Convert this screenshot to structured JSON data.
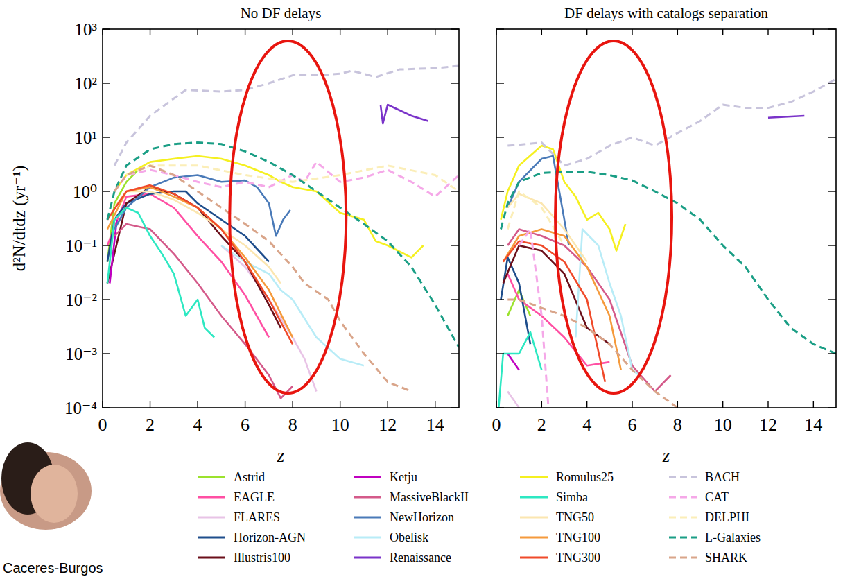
{
  "chart_data": [
    {
      "type": "line",
      "title": "No DF delays",
      "x_label": "z",
      "y_label": "d²N/dtdz (yr⁻¹)",
      "log": "y",
      "grid": false,
      "legend": "bottom",
      "xlim": [
        0,
        15
      ],
      "ylim": [
        0.0001,
        1000
      ],
      "xticks": [
        0,
        2,
        4,
        6,
        8,
        10,
        12,
        14
      ],
      "yticks": [
        {
          "value": 0.0001,
          "label": "10⁻⁴"
        },
        {
          "value": 0.001,
          "label": "10⁻³"
        },
        {
          "value": 0.01,
          "label": "10⁻²"
        },
        {
          "value": 0.1,
          "label": "10⁻¹"
        },
        {
          "value": 1,
          "label": "10⁰"
        },
        {
          "value": 10,
          "label": "10¹"
        },
        {
          "value": 100,
          "label": "10²"
        },
        {
          "value": 1000,
          "label": "10³"
        }
      ],
      "credit": "Caceres-Burgos",
      "series": [
        {
          "name": "Astrid",
          "color": "#9be22d",
          "line_style": "solid",
          "x": [
            0.2,
            0.5,
            1,
            1.5
          ],
          "values": [
            0.05,
            0.6,
            1.5,
            2.5
          ]
        },
        {
          "name": "EAGLE",
          "color": "#ff4fa3",
          "line_style": "solid",
          "x": [
            0.2,
            1,
            2,
            3,
            4,
            5,
            6,
            7
          ],
          "values": [
            0.1,
            0.8,
            0.9,
            0.5,
            0.15,
            0.05,
            0.012,
            0.002
          ]
        },
        {
          "name": "FLARES",
          "color": "#e8c3e6",
          "line_style": "solid",
          "x": [
            5,
            6,
            7,
            8,
            8.5,
            9
          ],
          "values": [
            0.1,
            0.04,
            0.01,
            0.002,
            0.0008,
            0.0002
          ]
        },
        {
          "name": "Horizon-AGN",
          "color": "#1f4e8c",
          "line_style": "solid",
          "x": [
            0.2,
            0.5,
            1,
            2,
            3,
            3.5,
            4,
            5,
            6,
            7
          ],
          "values": [
            0.05,
            0.3,
            0.6,
            0.9,
            1.0,
            1.0,
            0.6,
            0.3,
            0.15,
            0.05
          ]
        },
        {
          "name": "Illustris100",
          "color": "#6b0f1a",
          "line_style": "solid",
          "x": [
            0.2,
            1,
            2,
            3,
            4,
            5,
            6,
            7,
            7.5
          ],
          "values": [
            0.02,
            0.6,
            1.2,
            0.9,
            0.5,
            0.15,
            0.05,
            0.008,
            0.003
          ]
        },
        {
          "name": "Ketju",
          "color": "#c000c0",
          "line_style": "solid",
          "x": [
            0.3,
            0.6
          ],
          "values": [
            0.02,
            0.3
          ]
        },
        {
          "name": "MassiveBlackII",
          "color": "#d45a8a",
          "line_style": "solid",
          "x": [
            0.5,
            1,
            2,
            3,
            4,
            5,
            6,
            7,
            7.5,
            8
          ],
          "values": [
            0.15,
            0.25,
            0.2,
            0.07,
            0.02,
            0.005,
            0.0015,
            0.0004,
            0.00015,
            0.00025
          ]
        },
        {
          "name": "NewHorizon",
          "color": "#4a7ab8",
          "line_style": "solid",
          "x": [
            0.5,
            1,
            2,
            3,
            4,
            5,
            6,
            6.5,
            7,
            7.3,
            7.6,
            7.9
          ],
          "values": [
            0.2,
            0.5,
            1.2,
            1.8,
            2,
            1.5,
            1.6,
            1.2,
            0.6,
            0.15,
            0.3,
            0.45
          ]
        },
        {
          "name": "Obelisk",
          "color": "#b8ecf7",
          "line_style": "solid",
          "x": [
            5,
            6,
            7,
            7.5,
            8,
            9,
            10,
            11
          ],
          "values": [
            0.1,
            0.05,
            0.03,
            0.015,
            0.01,
            0.002,
            0.0008,
            0.0006
          ]
        },
        {
          "name": "Renaissance",
          "color": "#7a33c9",
          "line_style": "solid",
          "x": [
            11.7,
            11.8,
            12,
            13,
            13.7
          ],
          "values": [
            40,
            18,
            40,
            25,
            20
          ]
        },
        {
          "name": "Romulus25",
          "color": "#f5f020",
          "line_style": "solid",
          "x": [
            0.5,
            1,
            2,
            3,
            4,
            5,
            6,
            7,
            7.5,
            8,
            9,
            10,
            11,
            11.5,
            12,
            13,
            13.5
          ],
          "values": [
            1,
            2,
            3.5,
            4,
            4.5,
            4,
            3,
            2,
            1.5,
            1.2,
            1.0,
            0.4,
            0.3,
            0.12,
            0.1,
            0.06,
            0.1
          ]
        },
        {
          "name": "Simba",
          "color": "#2de8c2",
          "line_style": "solid",
          "x": [
            0.2,
            0.5,
            1,
            1.5,
            2,
            2.5,
            3,
            3.5,
            4,
            4.3,
            4.7
          ],
          "values": [
            0.02,
            0.3,
            0.5,
            0.4,
            0.15,
            0.07,
            0.03,
            0.005,
            0.01,
            0.003,
            0.002
          ]
        },
        {
          "name": "TNG50",
          "color": "#fbe6b0",
          "line_style": "solid",
          "x": [
            0.5,
            1,
            2,
            3,
            4,
            5,
            6,
            7,
            7.5
          ],
          "values": [
            0.5,
            1,
            1.0,
            0.7,
            0.4,
            0.2,
            0.1,
            0.04,
            0.02
          ]
        },
        {
          "name": "TNG100",
          "color": "#f59a3c",
          "line_style": "solid",
          "x": [
            0.2,
            1,
            2,
            3,
            4,
            5,
            6,
            7,
            8
          ],
          "values": [
            0.2,
            1,
            1.2,
            0.8,
            0.5,
            0.2,
            0.06,
            0.015,
            0.002
          ]
        },
        {
          "name": "TNG300",
          "color": "#f04a2a",
          "line_style": "solid",
          "x": [
            0.2,
            1,
            2,
            3,
            4,
            5,
            6,
            7,
            8
          ],
          "values": [
            0.3,
            1,
            1.3,
            0.9,
            0.5,
            0.2,
            0.05,
            0.01,
            0.0015
          ]
        },
        {
          "name": "BACH",
          "color": "#c8c4dc",
          "line_style": "dashed",
          "x": [
            0.5,
            1,
            2,
            3.5,
            5,
            6,
            7,
            8,
            9,
            10,
            10.5,
            11.5,
            12.5,
            14,
            15
          ],
          "values": [
            3,
            8,
            25,
            75,
            70,
            75,
            100,
            140,
            140,
            150,
            170,
            130,
            180,
            190,
            210
          ]
        },
        {
          "name": "CAT",
          "color": "#f5a8e8",
          "line_style": "dashed",
          "x": [
            0.5,
            1,
            2,
            3,
            4,
            5,
            6,
            7,
            8,
            8.5,
            9,
            10,
            11,
            12,
            13,
            14,
            15
          ],
          "values": [
            1,
            2,
            2.5,
            2,
            1.5,
            1.2,
            1.5,
            1.2,
            2,
            1.5,
            3.5,
            1.5,
            1.8,
            2.5,
            1.5,
            0.8,
            2
          ]
        },
        {
          "name": "DELPHI",
          "color": "#fbeeb8",
          "line_style": "dashed",
          "x": [
            1,
            2,
            4,
            6,
            8,
            10,
            12,
            14,
            15
          ],
          "values": [
            2,
            3,
            3,
            2,
            1.5,
            2,
            3,
            2,
            1
          ]
        },
        {
          "name": "L-Galaxies",
          "color": "#1a9e85",
          "line_style": "dashed",
          "x": [
            0.2,
            0.5,
            1,
            2,
            3,
            4,
            5,
            6,
            7,
            8,
            9,
            10,
            11,
            12,
            13,
            14,
            15
          ],
          "values": [
            0.3,
            1,
            3,
            6,
            7.5,
            8,
            7.5,
            5.5,
            3.5,
            2,
            1,
            0.5,
            0.25,
            0.12,
            0.04,
            0.008,
            0.0013
          ]
        },
        {
          "name": "SHARK",
          "color": "#d9a58a",
          "line_style": "dashed",
          "x": [
            0.5,
            1,
            2,
            3,
            4,
            5,
            6,
            7,
            8,
            8.5,
            9.5,
            10,
            11,
            12,
            13
          ],
          "values": [
            1,
            2,
            3,
            2,
            1,
            0.5,
            0.25,
            0.12,
            0.04,
            0.02,
            0.01,
            0.004,
            0.001,
            0.0003,
            0.0002
          ]
        }
      ]
    },
    {
      "type": "line",
      "title": "DF delays with catalogs separation",
      "x_label": "z",
      "log": "y",
      "grid": false,
      "tick_labels": "x",
      "xlim": [
        0,
        15
      ],
      "ylim": [
        0.0001,
        1000
      ],
      "xticks": [
        0,
        2,
        4,
        6,
        8,
        10,
        12,
        14
      ],
      "yticks": [
        0.0001,
        0.001,
        0.01,
        0.1,
        1,
        10,
        100,
        1000
      ],
      "series": [
        {
          "color": "#9be22d",
          "line_style": "solid",
          "x": [
            0.5,
            1,
            1.5
          ],
          "values": [
            0.005,
            0.015,
            0.005
          ]
        },
        {
          "color": "#ff4fa3",
          "line_style": "solid",
          "x": [
            0.5,
            1,
            2,
            3,
            4,
            5
          ],
          "values": [
            0.03,
            0.01,
            0.005,
            0.002,
            0.0006,
            0.0007
          ]
        },
        {
          "color": "#e8c3e6",
          "line_style": "solid",
          "x": [
            0.5,
            1
          ],
          "values": [
            0.0002,
            0.0001
          ]
        },
        {
          "color": "#1f4e8c",
          "line_style": "solid",
          "x": [
            0.2,
            0.5,
            1,
            1.5
          ],
          "values": [
            0.01,
            0.06,
            0.02,
            0.0015
          ]
        },
        {
          "color": "#6b0f1a",
          "line_style": "solid",
          "x": [
            0.3,
            1,
            2,
            3,
            4,
            5
          ],
          "values": [
            0.02,
            0.1,
            0.08,
            0.03,
            0.003,
            0.0015
          ]
        },
        {
          "color": "#c000c0",
          "line_style": "solid",
          "x": [
            0.5,
            1
          ],
          "values": [
            0.001,
            0.0005
          ]
        },
        {
          "color": "#d45a8a",
          "line_style": "solid",
          "x": [
            0.5,
            1,
            2,
            3,
            4,
            5,
            6,
            7,
            7.7
          ],
          "values": [
            0.1,
            0.2,
            0.15,
            0.1,
            0.04,
            0.01,
            0.0006,
            0.0002,
            0.0004
          ]
        },
        {
          "color": "#4a7ab8",
          "line_style": "solid",
          "x": [
            0.5,
            1,
            2,
            2.5,
            3,
            3.2
          ],
          "values": [
            0.5,
            1.5,
            4,
            4.5,
            0.3,
            0.1
          ]
        },
        {
          "color": "#b8ecf7",
          "line_style": "solid",
          "x": [
            3.5,
            3.8,
            4.5,
            5,
            5.5,
            6,
            6.3
          ],
          "values": [
            0.002,
            0.2,
            0.1,
            0.02,
            0.005,
            0.0005,
            0.0004
          ]
        },
        {
          "color": "#7a33c9",
          "line_style": "solid",
          "x": [
            12,
            13.6
          ],
          "values": [
            23,
            25
          ]
        },
        {
          "color": "#f5f020",
          "line_style": "solid",
          "x": [
            0.2,
            0.5,
            1,
            2,
            2.5,
            3,
            3.5,
            4,
            4.5,
            5,
            5.3,
            5.7
          ],
          "values": [
            0.3,
            1,
            3,
            7,
            6,
            1.5,
            0.8,
            0.3,
            0.4,
            0.2,
            0.08,
            0.25
          ]
        },
        {
          "color": "#2de8c2",
          "line_style": "solid",
          "x": [
            0.1,
            0.3,
            1,
            1.5,
            2
          ],
          "values": [
            0.0001,
            0.001,
            0.001,
            0.0025,
            0.0005
          ]
        },
        {
          "color": "#fbe6b0",
          "line_style": "solid",
          "x": [
            0.5,
            1,
            2,
            3,
            4
          ],
          "values": [
            0.5,
            0.9,
            0.6,
            0.2,
            0.05
          ]
        },
        {
          "color": "#f59a3c",
          "line_style": "solid",
          "x": [
            0.3,
            1,
            2,
            3,
            4,
            5,
            5.5
          ],
          "values": [
            0.05,
            0.15,
            0.2,
            0.15,
            0.04,
            0.005,
            0.0005
          ]
        },
        {
          "color": "#f04a2a",
          "line_style": "solid",
          "x": [
            0.3,
            1,
            2,
            3,
            4,
            4.8
          ],
          "values": [
            0.05,
            0.12,
            0.1,
            0.05,
            0.01,
            0.0003
          ]
        },
        {
          "color": "#c8c4dc",
          "line_style": "dashed",
          "x": [
            0.5,
            2,
            3,
            4,
            5,
            6,
            7,
            8,
            9,
            10,
            11,
            12,
            13,
            14,
            15
          ],
          "values": [
            7,
            8,
            3,
            4,
            7,
            10,
            7,
            12,
            20,
            40,
            35,
            35,
            45,
            70,
            120
          ]
        },
        {
          "color": "#f5a8e8",
          "line_style": "dashed",
          "x": [
            1,
            1.5,
            2,
            2.3
          ],
          "values": [
            0.1,
            0.2,
            0.005,
            0.0001
          ]
        },
        {
          "color": "#fbeeb8",
          "line_style": "dashed",
          "x": [
            0.5,
            1,
            2,
            3
          ],
          "values": [
            0.2,
            1,
            0.5,
            0.1
          ]
        },
        {
          "color": "#1a9e85",
          "line_style": "dashed",
          "x": [
            0.2,
            0.5,
            1,
            2,
            3,
            4,
            5,
            6,
            7,
            8,
            9,
            10,
            11,
            12,
            13,
            14,
            15
          ],
          "values": [
            0.2,
            0.6,
            1.5,
            2.2,
            2.3,
            2.3,
            2.0,
            1.6,
            1.0,
            0.6,
            0.3,
            0.1,
            0.04,
            0.01,
            0.003,
            0.0015,
            0.001
          ]
        },
        {
          "color": "#d9a58a",
          "line_style": "dashed",
          "x": [
            0.5,
            1,
            2,
            3,
            4,
            5,
            6,
            7,
            8
          ],
          "values": [
            0.01,
            0.01,
            0.007,
            0.005,
            0.003,
            0.0015,
            0.0005,
            0.0002,
            0.0001
          ]
        }
      ]
    }
  ]
}
